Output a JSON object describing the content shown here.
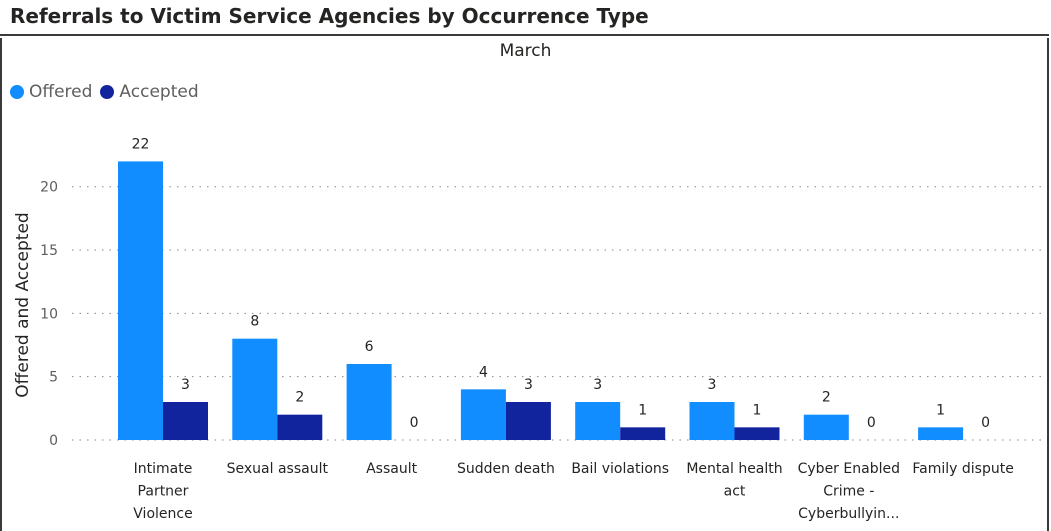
{
  "header": {
    "title": "Referrals to Victim Service Agencies by Occurrence Type"
  },
  "legend": [
    {
      "label": "Offered",
      "color": "#118dff"
    },
    {
      "label": "Accepted",
      "color": "#12239e"
    }
  ],
  "chart_data": {
    "type": "bar",
    "title": "March",
    "xlabel": "",
    "ylabel": "Offered and Accepted",
    "ylim": [
      0,
      25
    ],
    "yticks": [
      0,
      5,
      10,
      15,
      20
    ],
    "grid": true,
    "legend_position": "top-left",
    "categories": [
      [
        "Intimate",
        "Partner",
        "Violence"
      ],
      [
        "Sexual assault"
      ],
      [
        "Assault"
      ],
      [
        "Sudden death"
      ],
      [
        "Bail violations"
      ],
      [
        "Mental health",
        "act"
      ],
      [
        "Cyber Enabled",
        "Crime -",
        "Cyberbullyin..."
      ],
      [
        "Family dispute"
      ]
    ],
    "series": [
      {
        "name": "Offered",
        "color": "#118dff",
        "values": [
          22,
          8,
          6,
          4,
          3,
          3,
          2,
          1
        ]
      },
      {
        "name": "Accepted",
        "color": "#12239e",
        "values": [
          3,
          2,
          0,
          3,
          1,
          1,
          0,
          0
        ]
      }
    ]
  }
}
